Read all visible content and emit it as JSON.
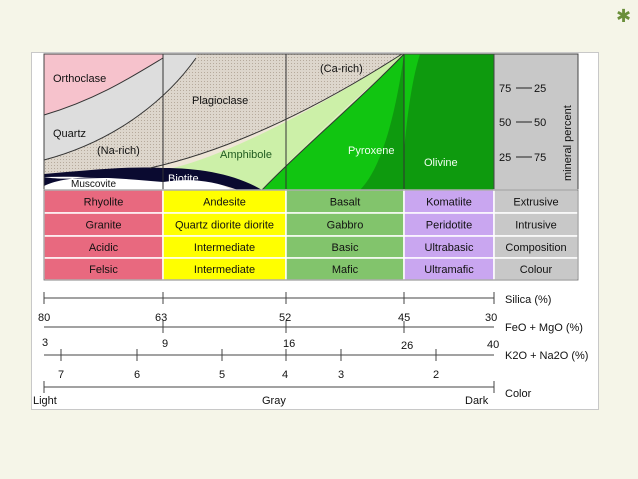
{
  "decoration": {
    "asterisk": "✱"
  },
  "top_chart": {
    "minerals": {
      "orthoclase": "Orthoclase",
      "quartz": "Quartz",
      "na_rich": "(Na-rich)",
      "muscovite": "Muscovite",
      "plagioclase": "Plagioclase",
      "ca_rich": "(Ca-rich)",
      "amphibole": "Amphibole",
      "biotite": "Biotite",
      "pyroxene": "Pyroxene",
      "olivine": "Olivine"
    },
    "mineral_percent": {
      "label": "mineral percent",
      "left_ticks": [
        "75",
        "50",
        "25"
      ],
      "right_ticks": [
        "25",
        "50",
        "75"
      ]
    }
  },
  "table": {
    "columns": [
      {
        "cells": [
          "Rhyolite",
          "Granite",
          "Acidic",
          "Felsic"
        ],
        "color": "#e8697f"
      },
      {
        "cells": [
          "Andesite",
          "Quartz diorite  diorite",
          "Intermediate",
          "Intermediate"
        ],
        "color": "#ffff00"
      },
      {
        "cells": [
          "Basalt",
          "Gabbro",
          "Basic",
          "Mafic"
        ],
        "color": "#82c46c"
      },
      {
        "cells": [
          "Komatiite",
          "Peridotite",
          "Ultrabasic",
          "Ultramafic"
        ],
        "color": "#c9a6f0"
      },
      {
        "cells": [
          "Extrusive",
          "Intrusive",
          "Composition",
          "Colour"
        ],
        "color": "#c8c8c8"
      }
    ]
  },
  "scales": {
    "silica": {
      "label": "Silica (%)",
      "ticks": [
        "80",
        "63",
        "52",
        "45",
        "30"
      ]
    },
    "feo_mgo": {
      "label": "FeO + MgO (%)",
      "ticks": [
        "3",
        "9",
        "16",
        "26",
        "40"
      ]
    },
    "k2o_na2o": {
      "label": "K2O + Na2O (%)",
      "ticks": [
        "7",
        "6",
        "5",
        "4",
        "3",
        "2"
      ]
    },
    "color": {
      "label": "Color",
      "ticks": [
        "Light",
        "Gray",
        "Dark"
      ]
    }
  }
}
